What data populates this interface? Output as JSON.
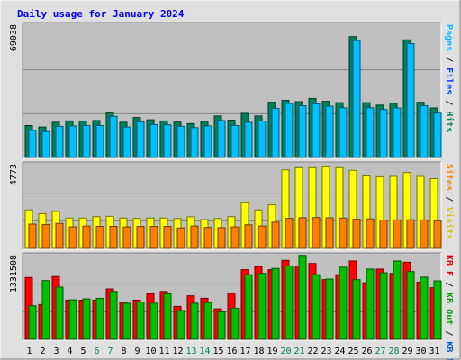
{
  "chart_data": {
    "title": "Daily usage for January 2024",
    "type": "bar",
    "categories": [
      "1",
      "2",
      "3",
      "4",
      "5",
      "6",
      "7",
      "8",
      "9",
      "10",
      "11",
      "12",
      "13",
      "14",
      "15",
      "16",
      "17",
      "18",
      "19",
      "20",
      "21",
      "22",
      "23",
      "24",
      "25",
      "26",
      "27",
      "28",
      "29",
      "30",
      "31"
    ],
    "weekend_days": [
      "6",
      "7",
      "13",
      "14",
      "20",
      "21",
      "27",
      "28"
    ],
    "panels": [
      {
        "ymax_label": "69038",
        "ymax": 69038,
        "legend": [
          "Hits",
          "/",
          "Files",
          "/",
          "Pages"
        ],
        "legend_colors": [
          "#00805c",
          "#202020",
          "#0040ff",
          "#202020",
          "#00c0ff"
        ],
        "series": [
          {
            "name": "Hits",
            "color": "#00805c",
            "values": [
              16800,
              16000,
              18500,
              19200,
              19000,
              19400,
              23500,
              18500,
              21000,
              19800,
              19200,
              18600,
              17800,
              19000,
              21800,
              19600,
              23200,
              21800,
              29000,
              30000,
              29300,
              31000,
              29500,
              28800,
              63500,
              28800,
              27500,
              28500,
              61800,
              29000,
              26000
            ]
          },
          {
            "name": "Files",
            "color": "#00c0ff",
            "values": [
              14200,
              13600,
              16300,
              16600,
              16800,
              16800,
              21600,
              16000,
              18700,
              17300,
              17200,
              16400,
              15700,
              16600,
              19400,
              16800,
              18500,
              19100,
              25800,
              28400,
              27200,
              28200,
              26900,
              26100,
              61400,
              26100,
              25200,
              26000,
              59800,
              27200,
              23300
            ]
          }
        ]
      },
      {
        "ymax_label": "4773",
        "ymax": 4773,
        "legend": [
          "Visits",
          "/",
          "Sites"
        ],
        "legend_colors": [
          "#d0c000",
          "#202020",
          "#ff8000"
        ],
        "series": [
          {
            "name": "Visits",
            "color": "#ffff00",
            "values": [
              2220,
              2000,
              2130,
              1750,
              1750,
              1830,
              1850,
              1750,
              1730,
              1750,
              1750,
              1720,
              1820,
              1660,
              1720,
              1830,
              2630,
              2220,
              2520,
              4530,
              4650,
              4650,
              4700,
              4650,
              4500,
              4180,
              4130,
              4150,
              4380,
              4150,
              4020
            ]
          },
          {
            "name": "Sites",
            "color": "#ff8000",
            "values": [
              1400,
              1370,
              1440,
              1240,
              1290,
              1270,
              1270,
              1240,
              1270,
              1270,
              1270,
              1180,
              1290,
              1210,
              1200,
              1240,
              1360,
              1290,
              1510,
              1730,
              1770,
              1780,
              1760,
              1750,
              1680,
              1700,
              1630,
              1640,
              1650,
              1640,
              1590
            ]
          }
        ]
      },
      {
        "ymax_label": "1331508",
        "ymax": 1331508,
        "legend": [
          "KB In",
          "/",
          "KB Out",
          "/",
          "KB F"
        ],
        "legend_colors": [
          "#0060c0",
          "#202020",
          "#00a000",
          "#202020",
          "#e00000"
        ],
        "series": [
          {
            "name": "KB F",
            "color": "#ff0000",
            "values": [
              995000,
              560000,
              1010000,
              630000,
              630000,
              630000,
              810000,
              600000,
              630000,
              730000,
              770000,
              530000,
              700000,
              660000,
              490000,
              740000,
              1120000,
              1170000,
              1120000,
              1270000,
              1180000,
              1220000,
              960000,
              1040000,
              1260000,
              910000,
              1130000,
              1060000,
              1240000,
              920000,
              830000
            ]
          },
          {
            "name": "KB Out",
            "color": "#00c000",
            "values": [
              540000,
              945000,
              840000,
              635000,
              650000,
              660000,
              770000,
              580000,
              600000,
              580000,
              730000,
              465000,
              580000,
              590000,
              440000,
              500000,
              1040000,
              1060000,
              1140000,
              1180000,
              1350000,
              1040000,
              970000,
              1160000,
              960000,
              1130000,
              1070000,
              1260000,
              1090000,
              1000000,
              940000
            ]
          }
        ]
      }
    ]
  }
}
